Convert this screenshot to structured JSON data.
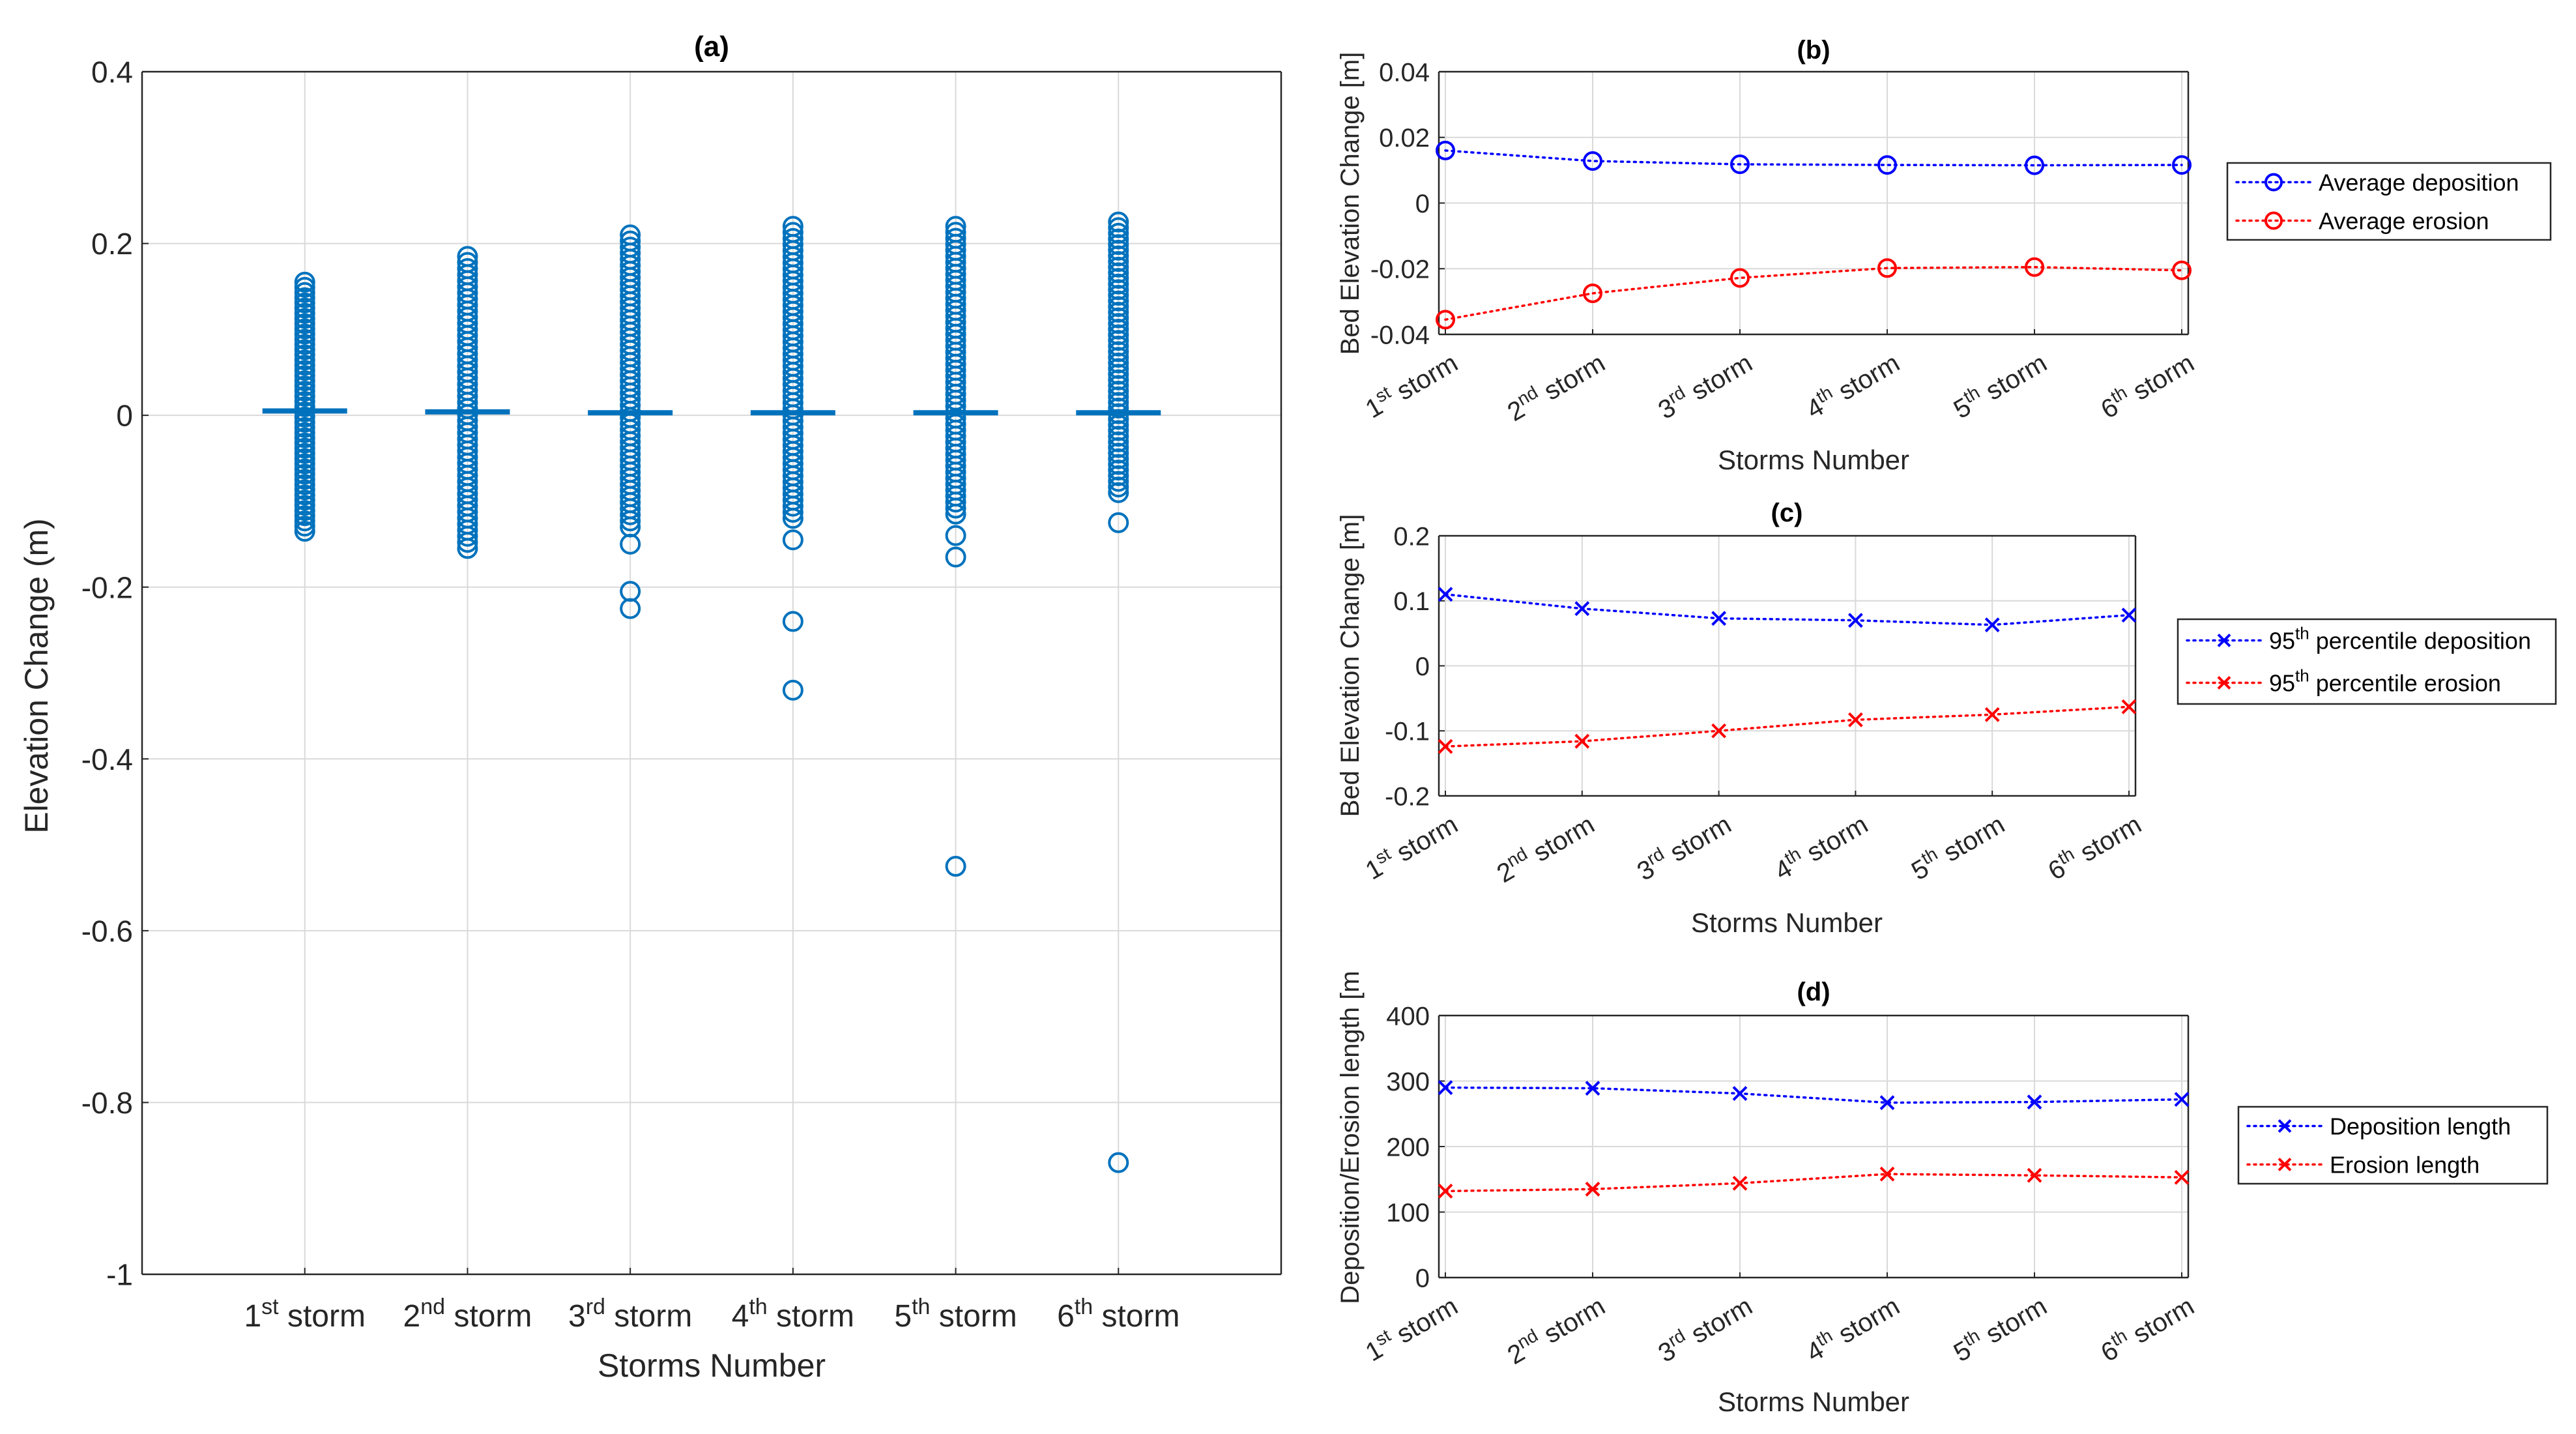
{
  "chart_data": [
    {
      "id": "a",
      "type": "scatter",
      "title": "(a)",
      "xlabel": "Storms Number",
      "ylabel": "Elevation Change (m)",
      "ylim": [
        -1,
        0.4
      ],
      "yticks": [
        -1,
        -0.8,
        -0.6,
        -0.4,
        -0.2,
        0,
        0.2,
        0.4
      ],
      "ytick_labels": [
        "-1",
        "-0.8",
        "-0.6",
        "-0.4",
        "-0.2",
        "0",
        "0.2",
        "0.4"
      ],
      "grid": true,
      "marker": "circle",
      "color": "#0072BD",
      "categories": [
        {
          "num": "1",
          "sup": "st",
          "rest": " storm"
        },
        {
          "num": "2",
          "sup": "nd",
          "rest": " storm"
        },
        {
          "num": "3",
          "sup": "rd",
          "rest": " storm"
        },
        {
          "num": "4",
          "sup": "th",
          "rest": " storm"
        },
        {
          "num": "5",
          "sup": "th",
          "rest": " storm"
        },
        {
          "num": "6",
          "sup": "th",
          "rest": " storm"
        }
      ],
      "series": [
        {
          "name": "1st storm",
          "dense_range": [
            -0.135,
            0.155
          ],
          "median": 0.005,
          "outliers": []
        },
        {
          "name": "2nd storm",
          "dense_range": [
            -0.155,
            0.185
          ],
          "median": 0.004,
          "outliers": []
        },
        {
          "name": "3rd storm",
          "dense_range": [
            -0.13,
            0.21
          ],
          "median": 0.003,
          "outliers": [
            -0.15,
            -0.205,
            -0.225
          ]
        },
        {
          "name": "4th storm",
          "dense_range": [
            -0.12,
            0.22
          ],
          "median": 0.003,
          "outliers": [
            -0.145,
            -0.24,
            -0.32
          ]
        },
        {
          "name": "5th storm",
          "dense_range": [
            -0.115,
            0.22
          ],
          "median": 0.003,
          "outliers": [
            -0.14,
            -0.165,
            -0.525
          ]
        },
        {
          "name": "6th storm",
          "dense_range": [
            -0.09,
            0.225
          ],
          "median": 0.003,
          "outliers": [
            -0.125,
            -0.87
          ]
        }
      ]
    },
    {
      "id": "b",
      "type": "line",
      "title": "(b)",
      "xlabel": "Storms Number",
      "ylabel": "Bed Elevation Change [m]",
      "ylim": [
        -0.04,
        0.04
      ],
      "yticks": [
        -0.04,
        -0.02,
        0,
        0.02,
        0.04
      ],
      "ytick_labels": [
        "-0.04",
        "-0.02",
        "0",
        "0.02",
        "0.04"
      ],
      "grid": true,
      "marker": "circle",
      "categories": [
        {
          "num": "1",
          "sup": "st",
          "rest": " storm"
        },
        {
          "num": "2",
          "sup": "nd",
          "rest": " storm"
        },
        {
          "num": "3",
          "sup": "rd",
          "rest": " storm"
        },
        {
          "num": "4",
          "sup": "th",
          "rest": " storm"
        },
        {
          "num": "5",
          "sup": "th",
          "rest": " storm"
        },
        {
          "num": "6",
          "sup": "th",
          "rest": " storm"
        }
      ],
      "series": [
        {
          "name": "Average deposition",
          "color": "#0000FF",
          "values": [
            0.016,
            0.0128,
            0.0118,
            0.0116,
            0.0115,
            0.0116
          ]
        },
        {
          "name": "Average erosion",
          "color": "#FF0000",
          "values": [
            -0.0355,
            -0.0275,
            -0.0228,
            -0.0198,
            -0.0195,
            -0.0205
          ]
        }
      ]
    },
    {
      "id": "c",
      "type": "line",
      "title": "(c)",
      "xlabel": "Storms Number",
      "ylabel": "Bed Elevation Change [m]",
      "ylim": [
        -0.2,
        0.2
      ],
      "yticks": [
        -0.2,
        -0.1,
        0,
        0.1,
        0.2
      ],
      "ytick_labels": [
        "-0.2",
        "-0.1",
        "0",
        "0.1",
        "0.2"
      ],
      "grid": true,
      "marker": "x",
      "categories": [
        {
          "num": "1",
          "sup": "st",
          "rest": " storm"
        },
        {
          "num": "2",
          "sup": "nd",
          "rest": " storm"
        },
        {
          "num": "3",
          "sup": "rd",
          "rest": " storm"
        },
        {
          "num": "4",
          "sup": "th",
          "rest": " storm"
        },
        {
          "num": "5",
          "sup": "th",
          "rest": " storm"
        },
        {
          "num": "6",
          "sup": "th",
          "rest": " storm"
        }
      ],
      "series": [
        {
          "name_num": "95",
          "name_sup": "th",
          "name_rest": " percentile deposition",
          "color": "#0000FF",
          "values": [
            0.11,
            0.088,
            0.073,
            0.07,
            0.063,
            0.078
          ]
        },
        {
          "name_num": "95",
          "name_sup": "th",
          "name_rest": " percentile erosion",
          "color": "#FF0000",
          "values": [
            -0.124,
            -0.116,
            -0.1,
            -0.083,
            -0.075,
            -0.063
          ]
        }
      ]
    },
    {
      "id": "d",
      "type": "line",
      "title": "(d)",
      "xlabel": "Storms Number",
      "ylabel": "Deposition/Erosion length [m",
      "ylim": [
        0,
        400
      ],
      "yticks": [
        0,
        100,
        200,
        300,
        400
      ],
      "ytick_labels": [
        "0",
        "100",
        "200",
        "300",
        "400"
      ],
      "grid": true,
      "marker": "x",
      "categories": [
        {
          "num": "1",
          "sup": "st",
          "rest": " storm"
        },
        {
          "num": "2",
          "sup": "nd",
          "rest": " storm"
        },
        {
          "num": "3",
          "sup": "rd",
          "rest": " storm"
        },
        {
          "num": "4",
          "sup": "th",
          "rest": " storm"
        },
        {
          "num": "5",
          "sup": "th",
          "rest": " storm"
        },
        {
          "num": "6",
          "sup": "th",
          "rest": " storm"
        }
      ],
      "series": [
        {
          "name": "Deposition length",
          "color": "#0000FF",
          "values": [
            290,
            289,
            281,
            267,
            268,
            272
          ]
        },
        {
          "name": "Erosion length",
          "color": "#FF0000",
          "values": [
            132,
            135,
            144,
            158,
            156,
            153
          ]
        }
      ]
    }
  ]
}
